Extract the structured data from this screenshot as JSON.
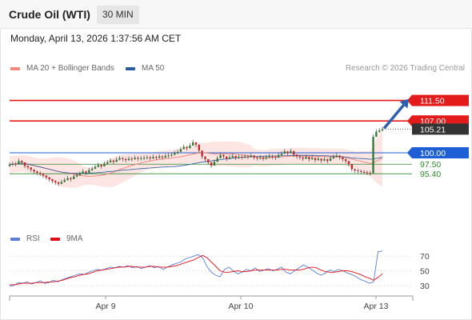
{
  "header": {
    "instrument": "Crude Oil (WTI)",
    "interval": "30 MIN"
  },
  "timestamp": "Monday, April 13, 2026 1:37:56 AM CET",
  "legend": {
    "ma20_label": "MA 20 + Bollinger Bands",
    "ma20_color": "#f4877f",
    "ma50_label": "MA 50",
    "ma50_color": "#2a5aa0"
  },
  "credit": "Research © 2026 Trading Central",
  "rsi_legend": {
    "rsi_label": "RSI",
    "rsi_color": "#5b7fd6",
    "ma9_label": "9MA",
    "ma9_color": "#e0101a"
  },
  "chart_data": [
    {
      "type": "candlestick",
      "title": "Crude Oil (WTI)",
      "interval": "30 MIN",
      "x_tick_labels": [
        "Apr 9",
        "Apr 10",
        "Apr 13"
      ],
      "ylim": [
        84,
        116
      ],
      "last_price": 105.21,
      "series": [
        {
          "name": "Crude Oil (WTI)",
          "closes": [
            97.4,
            97.6,
            97.5,
            98.2,
            97.9,
            97.1,
            96.8,
            96.3,
            95.9,
            95.6,
            95.4,
            95.0,
            94.6,
            94.2,
            93.8,
            93.5,
            93.2,
            93.6,
            94.0,
            94.4,
            94.2,
            94.8,
            95.1,
            95.4,
            95.9,
            95.6,
            96.2,
            96.5,
            96.9,
            97.3,
            97.0,
            97.6,
            97.9,
            98.3,
            98.0,
            98.5,
            98.8,
            98.6,
            98.4,
            98.7,
            98.6,
            98.9,
            98.7,
            98.8,
            98.9,
            99.0,
            98.8,
            99.1,
            98.9,
            99.2,
            99.0,
            99.3,
            99.4,
            99.6,
            99.9,
            100.2,
            100.8,
            101.3,
            101.0,
            101.6,
            102.3,
            101.8,
            100.5,
            99.2,
            98.6,
            97.9,
            97.2,
            98.0,
            98.8,
            99.5,
            99.2,
            98.7,
            99.0,
            99.3,
            98.9,
            99.1,
            99.0,
            99.2,
            99.1,
            99.4,
            99.0,
            98.8,
            99.0,
            98.7,
            99.0,
            99.3,
            99.1,
            98.9,
            99.5,
            99.8,
            100.3,
            99.9,
            100.4,
            99.6,
            99.2,
            99.0,
            98.7,
            99.1,
            98.6,
            98.9,
            98.4,
            98.7,
            98.3,
            98.6,
            98.2,
            98.8,
            99.1,
            99.4,
            99.0,
            98.6,
            98.2,
            97.5,
            96.4,
            96.1,
            96.0,
            95.8,
            95.7,
            95.6,
            95.5,
            103.5,
            104.6,
            104.9,
            105.21
          ],
          "highs": [
            97.9,
            98.1,
            98.0,
            98.7,
            98.4,
            97.7,
            97.3,
            96.8,
            96.4,
            96.1,
            95.9,
            95.5,
            95.1,
            94.7,
            94.3,
            94.0,
            93.7,
            94.1,
            94.5,
            94.9,
            94.7,
            95.3,
            95.6,
            95.9,
            96.4,
            96.1,
            96.7,
            97.0,
            97.4,
            97.8,
            97.5,
            98.1,
            98.4,
            98.8,
            98.5,
            99.0,
            99.3,
            99.1,
            98.9,
            99.2,
            99.1,
            99.4,
            99.2,
            99.3,
            99.4,
            99.5,
            99.3,
            99.6,
            99.4,
            99.7,
            99.5,
            99.8,
            99.9,
            100.1,
            100.4,
            100.7,
            101.3,
            101.8,
            101.5,
            102.1,
            102.8,
            102.3,
            101.0,
            99.7,
            99.1,
            98.4,
            97.7,
            98.5,
            99.3,
            100.0,
            99.7,
            99.2,
            99.5,
            99.8,
            99.4,
            99.6,
            99.5,
            99.7,
            99.6,
            99.9,
            99.5,
            99.3,
            99.5,
            99.2,
            99.5,
            99.8,
            99.6,
            99.4,
            100.0,
            100.3,
            100.8,
            100.4,
            100.9,
            100.1,
            99.7,
            99.5,
            99.2,
            99.6,
            99.1,
            99.4,
            98.9,
            99.2,
            98.8,
            99.1,
            98.7,
            99.3,
            99.6,
            99.9,
            99.5,
            99.1,
            98.7,
            98.0,
            96.9,
            96.6,
            96.5,
            96.3,
            96.2,
            96.1,
            96.0,
            104.0,
            105.1,
            105.4,
            105.7
          ],
          "lows": [
            96.9,
            97.1,
            97.0,
            97.7,
            97.4,
            96.6,
            96.3,
            95.8,
            95.4,
            95.1,
            94.9,
            94.5,
            94.1,
            93.7,
            93.3,
            93.0,
            92.7,
            93.1,
            93.5,
            93.9,
            93.7,
            94.3,
            94.6,
            94.9,
            95.4,
            95.1,
            95.7,
            96.0,
            96.4,
            96.8,
            96.5,
            97.1,
            97.4,
            97.8,
            97.5,
            98.0,
            98.3,
            98.1,
            97.9,
            98.2,
            98.1,
            98.4,
            98.2,
            98.3,
            98.4,
            98.5,
            98.3,
            98.6,
            98.4,
            98.7,
            98.5,
            98.8,
            98.9,
            99.1,
            99.4,
            99.7,
            100.3,
            100.8,
            100.5,
            101.1,
            101.8,
            101.3,
            100.0,
            98.7,
            98.1,
            97.4,
            96.7,
            97.5,
            98.3,
            99.0,
            98.7,
            98.2,
            98.5,
            98.8,
            98.4,
            98.6,
            98.5,
            98.7,
            98.6,
            98.9,
            98.5,
            98.3,
            98.5,
            98.2,
            98.5,
            98.8,
            98.6,
            98.4,
            99.0,
            99.3,
            99.8,
            99.4,
            99.9,
            99.1,
            98.7,
            98.5,
            98.2,
            98.6,
            98.1,
            98.4,
            97.9,
            98.2,
            97.8,
            98.1,
            97.7,
            98.3,
            98.6,
            98.9,
            98.5,
            98.1,
            97.7,
            97.0,
            95.9,
            95.6,
            95.5,
            95.3,
            95.2,
            95.1,
            95.0,
            101.8,
            104.1,
            104.4,
            104.7
          ]
        },
        {
          "name": "MA 20 + Bollinger Bands",
          "color": "#f4877f"
        },
        {
          "name": "MA 50",
          "color": "#2a5aa0"
        }
      ],
      "levels": [
        {
          "value": 111.5,
          "label": "111.50",
          "kind": "resistance",
          "color": "#e31b1b"
        },
        {
          "value": 107.0,
          "label": "107.00",
          "kind": "resistance",
          "color": "#e31b1b"
        },
        {
          "value": 105.21,
          "label": "105.21",
          "kind": "last",
          "color": "#333333"
        },
        {
          "value": 100.0,
          "label": "100.00",
          "kind": "pivot",
          "color": "#1f5fd6"
        },
        {
          "value": 97.5,
          "label": "97.50",
          "kind": "support",
          "color": "#2e8b2e"
        },
        {
          "value": 95.4,
          "label": "95.40",
          "kind": "support",
          "color": "#2e8b2e"
        }
      ],
      "arrow": {
        "from": 105.21,
        "to": 111.5,
        "direction": "up"
      }
    },
    {
      "type": "line",
      "title": "RSI",
      "ylim": [
        20,
        80
      ],
      "y_tick_labels": [
        "70",
        "50",
        "30"
      ],
      "x_tick_labels": [
        "Apr 9",
        "Apr 10",
        "Apr 13"
      ],
      "series": [
        {
          "name": "RSI",
          "color": "#5b7fd6",
          "values": [
            29,
            30,
            34,
            33,
            35,
            32,
            34,
            36,
            33,
            34,
            37,
            35,
            38,
            40,
            42,
            44,
            46,
            45,
            48,
            50,
            52,
            51,
            53,
            55,
            54,
            56,
            55,
            57,
            54,
            56,
            53,
            55,
            57,
            54,
            56,
            52,
            55,
            58,
            60,
            62,
            66,
            68,
            70,
            72,
            68,
            56,
            48,
            44,
            42,
            52,
            55,
            50,
            46,
            48,
            52,
            50,
            54,
            49,
            51,
            53,
            50,
            52,
            55,
            48,
            46,
            50,
            54,
            58,
            55,
            51,
            47,
            44,
            47,
            51,
            49,
            52,
            50,
            47,
            45,
            42,
            38,
            36,
            33,
            35,
            76,
            77
          ]
        },
        {
          "name": "9MA",
          "color": "#e0101a",
          "values": [
            31,
            31,
            32,
            33,
            33,
            33,
            34,
            34,
            34,
            35,
            35,
            36,
            37,
            39,
            41,
            42,
            44,
            45,
            46,
            48,
            50,
            51,
            52,
            53,
            54,
            55,
            55,
            56,
            56,
            55,
            55,
            55,
            56,
            56,
            55,
            55,
            55,
            56,
            57,
            59,
            61,
            63,
            65,
            68,
            71,
            68,
            62,
            56,
            50,
            48,
            48,
            49,
            50,
            49,
            49,
            50,
            51,
            51,
            51,
            51,
            51,
            51,
            52,
            52,
            51,
            51,
            51,
            52,
            54,
            55,
            54,
            51,
            49,
            48,
            48,
            49,
            50,
            50,
            49,
            47,
            45,
            42,
            40,
            37,
            41,
            46
          ]
        }
      ],
      "levels": [
        70,
        50,
        30
      ]
    }
  ]
}
